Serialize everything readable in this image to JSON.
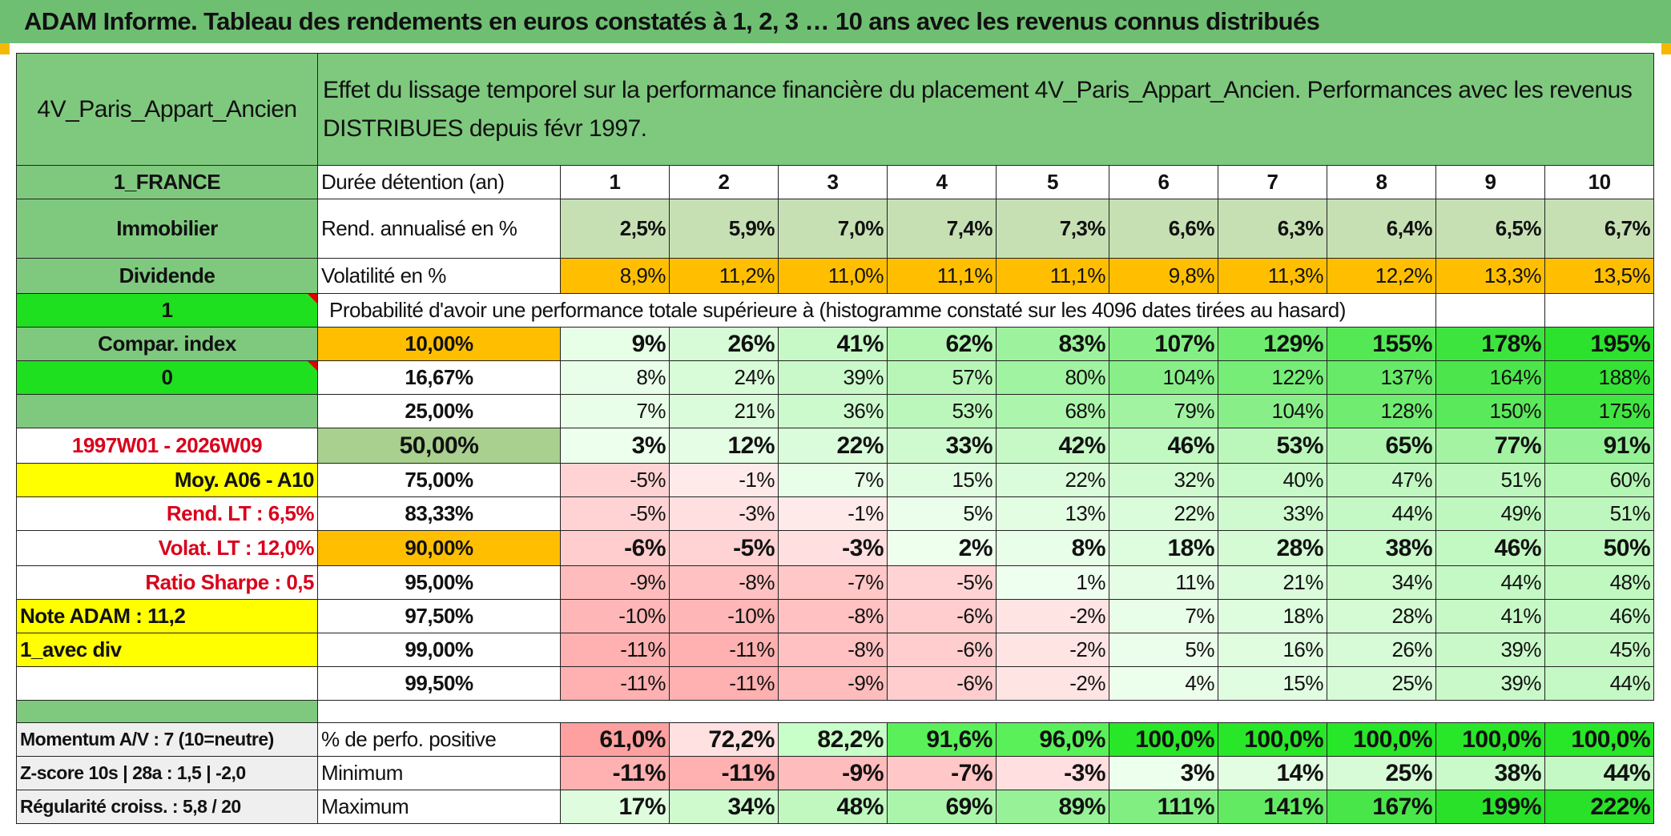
{
  "title": "ADAM Informe. Tableau des rendements en euros constatés à 1, 2, 3 … 10 ans avec les revenus connus distribués",
  "asset_name": "4V_Paris_Appart_Ancien",
  "description": "Effet du lissage temporel sur la performance financière du placement 4V_Paris_Appart_Ancien. Performances avec les revenus DISTRIBUES depuis févr 1997.",
  "side": {
    "country": "1_FRANCE",
    "category": "Immobilier",
    "income_type": "Dividende",
    "flag1": "1",
    "compar_label": "Compar. index",
    "flag0": "0",
    "period": "1997W01 - 2026W09",
    "moy": "Moy. A06 - A10",
    "rend_lt": "Rend. LT :    6,5%",
    "volat_lt": "Volat. LT :    12,0%",
    "sharpe": "Ratio Sharpe :    0,5",
    "note": "Note ADAM : 11,2",
    "div_mode": "1_avec div",
    "momentum": "Momentum A/V : 7 (10=neutre)",
    "zscore": "Z-score 10s | 28a : 1,5 | -2,0",
    "regularite": "Régularité croiss. : 5,8 / 20"
  },
  "header_row": {
    "label": "Durée détention (an)",
    "years": [
      "1",
      "2",
      "3",
      "4",
      "5",
      "6",
      "7",
      "8",
      "9",
      "10"
    ]
  },
  "rend_row": {
    "label": "Rend. annualisé en %",
    "values": [
      "2,5%",
      "5,9%",
      "7,0%",
      "7,4%",
      "7,3%",
      "6,6%",
      "6,3%",
      "6,4%",
      "6,5%",
      "6,7%"
    ]
  },
  "vol_row": {
    "label": "Volatilité en %",
    "values": [
      "8,9%",
      "11,2%",
      "11,0%",
      "11,1%",
      "11,1%",
      "9,8%",
      "11,3%",
      "12,2%",
      "13,3%",
      "13,5%"
    ]
  },
  "prob_label": "Probabilité d'avoir une performance totale supérieure à (histogramme constaté sur les 4096 dates tirées au hasard)",
  "quantile_rows": [
    {
      "label": "10,00%",
      "values": [
        "9%",
        "26%",
        "41%",
        "62%",
        "83%",
        "107%",
        "129%",
        "155%",
        "178%",
        "195%"
      ]
    },
    {
      "label": "16,67%",
      "values": [
        "8%",
        "24%",
        "39%",
        "57%",
        "80%",
        "104%",
        "122%",
        "137%",
        "164%",
        "188%"
      ]
    },
    {
      "label": "25,00%",
      "values": [
        "7%",
        "21%",
        "36%",
        "53%",
        "68%",
        "79%",
        "104%",
        "128%",
        "150%",
        "175%"
      ]
    },
    {
      "label": "50,00%",
      "values": [
        "3%",
        "12%",
        "22%",
        "33%",
        "42%",
        "46%",
        "53%",
        "65%",
        "77%",
        "91%"
      ]
    },
    {
      "label": "75,00%",
      "values": [
        "-5%",
        "-1%",
        "7%",
        "15%",
        "22%",
        "32%",
        "40%",
        "47%",
        "51%",
        "60%"
      ]
    },
    {
      "label": "83,33%",
      "values": [
        "-5%",
        "-3%",
        "-1%",
        "5%",
        "13%",
        "22%",
        "33%",
        "44%",
        "49%",
        "51%"
      ]
    },
    {
      "label": "90,00%",
      "values": [
        "-6%",
        "-5%",
        "-3%",
        "2%",
        "8%",
        "18%",
        "28%",
        "38%",
        "46%",
        "50%"
      ]
    },
    {
      "label": "95,00%",
      "values": [
        "-9%",
        "-8%",
        "-7%",
        "-5%",
        "1%",
        "11%",
        "21%",
        "34%",
        "44%",
        "48%"
      ]
    },
    {
      "label": "97,50%",
      "values": [
        "-10%",
        "-10%",
        "-8%",
        "-6%",
        "-2%",
        "7%",
        "18%",
        "28%",
        "41%",
        "46%"
      ]
    },
    {
      "label": "99,00%",
      "values": [
        "-11%",
        "-11%",
        "-8%",
        "-6%",
        "-2%",
        "5%",
        "16%",
        "26%",
        "39%",
        "45%"
      ]
    },
    {
      "label": "99,50%",
      "values": [
        "-11%",
        "-11%",
        "-9%",
        "-6%",
        "-2%",
        "4%",
        "15%",
        "25%",
        "39%",
        "44%"
      ]
    }
  ],
  "stats_rows": [
    {
      "label": "% de perfo. positive",
      "values": [
        "61,0%",
        "72,2%",
        "82,2%",
        "91,6%",
        "96,0%",
        "100,0%",
        "100,0%",
        "100,0%",
        "100,0%",
        "100,0%"
      ]
    },
    {
      "label": "Minimum",
      "values": [
        "-11%",
        "-11%",
        "-9%",
        "-7%",
        "-3%",
        "3%",
        "14%",
        "25%",
        "38%",
        "44%"
      ]
    },
    {
      "label": "Maximum",
      "values": [
        "17%",
        "34%",
        "48%",
        "69%",
        "89%",
        "111%",
        "141%",
        "167%",
        "199%",
        "222%"
      ]
    }
  ]
}
